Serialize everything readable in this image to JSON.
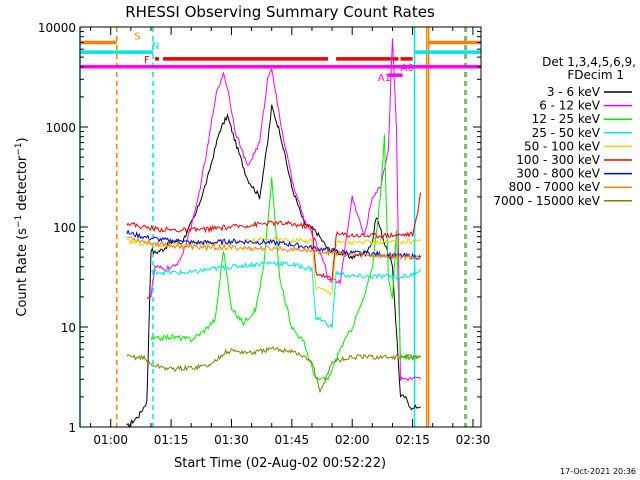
{
  "chart_data": {
    "type": "line",
    "title": "RHESSI Observing Summary Count Rates",
    "xlabel": "Start Time (02-Aug-02 00:52:22)",
    "ylabel": "Count Rate (s⁻¹ detector⁻¹)",
    "ylabel_parts": {
      "main": "Count Rate (s",
      "sup1": "−1",
      "mid": " detector",
      "sup2": "−1",
      "end": ")"
    },
    "y_scale": "log",
    "ylim": [
      1,
      10000
    ],
    "xlim": [
      "00:52:22",
      "02:32:00"
    ],
    "x_ticks": [
      "01:00",
      "01:15",
      "01:30",
      "01:45",
      "02:00",
      "02:15",
      "02:30"
    ],
    "y_ticks": [
      "1",
      "10",
      "100",
      "1000",
      "10000"
    ],
    "timestamp": "17-Oct-2021 20:36",
    "legend": {
      "placement": "right",
      "header": [
        "Det 1,3,4,5,6,9,",
        "FDecim 1"
      ],
      "entries": [
        {
          "label": "3 - 6 keV",
          "color": "#000000"
        },
        {
          "label": "6 - 12 keV",
          "color": "#ff00ff"
        },
        {
          "label": "12 - 25 keV",
          "color": "#00ee00"
        },
        {
          "label": "25 - 50 keV",
          "color": "#00e5e5"
        },
        {
          "label": "50 - 100 keV",
          "color": "#d8d800"
        },
        {
          "label": "100 - 300 keV",
          "color": "#ee0000"
        },
        {
          "label": "300 - 800 keV",
          "color": "#0000ee"
        },
        {
          "label": "800 - 7000 keV",
          "color": "#ff8000"
        },
        {
          "label": "7000 - 15000 keV",
          "color": "#808000"
        }
      ]
    },
    "flag_bars": [
      {
        "label": "S",
        "color": "#ff8000",
        "y": 7000,
        "segments": [
          [
            "00:52:22",
            "01:01:30"
          ],
          [
            "02:19:00",
            "02:32:00"
          ]
        ]
      },
      {
        "label": "N",
        "color": "#00e5e5",
        "y": 5600,
        "segments": [
          [
            "00:52:22",
            "01:10:30"
          ],
          [
            "02:15:30",
            "02:32:00"
          ]
        ]
      },
      {
        "label": "F",
        "color": "#ee0000",
        "y": 4800,
        "segments": [
          [
            "01:11:00",
            "01:12:00"
          ],
          [
            "01:13:00",
            "01:54:00"
          ],
          [
            "01:56:00",
            "02:11:30"
          ],
          [
            "02:12:00",
            "02:15:00"
          ]
        ]
      },
      {
        "label": "A0",
        "color": "#ff00ff",
        "y": 4000,
        "segments": [
          [
            "00:52:22",
            "02:32:00"
          ]
        ]
      },
      {
        "label": "A1",
        "color": "#ff00ff",
        "y": 3300,
        "segments": [
          [
            "02:09:00",
            "02:12:30"
          ]
        ]
      }
    ],
    "vertical_markers": [
      {
        "x": "00:52:22",
        "color": "#00e5e5",
        "style": "solid"
      },
      {
        "x": "01:01:30",
        "color": "#ff8000",
        "style": "dashed"
      },
      {
        "x": "01:10:30",
        "color": "#00e5e5",
        "style": "dashed"
      },
      {
        "x": "02:15:30",
        "color": "#00e5e5",
        "style": "solid"
      },
      {
        "x": "02:18:30",
        "color": "#ff8000",
        "style": "solid"
      },
      {
        "x": "02:19:00",
        "color": "#ff8000",
        "style": "solid"
      },
      {
        "x": "02:28:00",
        "color": "#ff8000",
        "style": "dashed"
      },
      {
        "x": "02:28:20",
        "color": "#00e5e5",
        "style": "dashed"
      }
    ],
    "series": [
      {
        "name": "3 - 6 keV",
        "color": "#000000",
        "x": [
          "01:04",
          "01:07",
          "01:09",
          "01:10",
          "01:11",
          "01:13",
          "01:15",
          "01:18",
          "01:21",
          "01:24",
          "01:27",
          "01:29",
          "01:31",
          "01:34",
          "01:37",
          "01:39",
          "01:40",
          "01:42",
          "01:45",
          "01:48",
          "01:51",
          "01:54",
          "01:57",
          "02:00",
          "02:03",
          "02:05",
          "02:06",
          "02:08",
          "02:10",
          "02:12",
          "02:13",
          "02:15",
          "02:16",
          "02:17"
        ],
        "values": [
          1,
          1.3,
          1.8,
          60,
          55,
          60,
          70,
          75,
          130,
          300,
          900,
          1300,
          700,
          300,
          200,
          700,
          1600,
          900,
          250,
          110,
          90,
          60,
          55,
          50,
          55,
          70,
          130,
          70,
          40,
          2,
          2,
          1.5,
          1.6,
          1.6
        ]
      },
      {
        "name": "6 - 12 keV",
        "color": "#ff00ff",
        "x": [
          "01:09",
          "01:10",
          "01:11",
          "01:13",
          "01:16",
          "01:18",
          "01:21",
          "01:24",
          "01:26",
          "01:28",
          "01:29",
          "01:31",
          "01:34",
          "01:37",
          "01:39",
          "01:40",
          "01:42",
          "01:45",
          "01:48",
          "01:51",
          "01:53",
          "01:54",
          "01:57",
          "02:00",
          "02:03",
          "02:05",
          "02:07",
          "02:09",
          "02:10",
          "02:11",
          "02:12",
          "02:13",
          "02:15",
          "02:17"
        ],
        "values": [
          20,
          20,
          40,
          38,
          40,
          55,
          140,
          600,
          2000,
          3500,
          2500,
          900,
          400,
          700,
          3000,
          4000,
          1200,
          300,
          120,
          70,
          45,
          30,
          28,
          200,
          80,
          200,
          250,
          600,
          8000,
          1000,
          3,
          3,
          3,
          3
        ]
      },
      {
        "name": "12 - 25 keV",
        "color": "#00ee00",
        "x": [
          "01:10",
          "01:15",
          "01:20",
          "01:23",
          "01:26",
          "01:28",
          "01:30",
          "01:33",
          "01:36",
          "01:38",
          "01:40",
          "01:42",
          "01:45",
          "01:48",
          "01:51",
          "01:54",
          "01:57",
          "02:00",
          "02:03",
          "02:05",
          "02:07",
          "02:08",
          "02:09",
          "02:10",
          "02:11",
          "02:12",
          "02:13",
          "02:15",
          "02:17"
        ],
        "values": [
          7.5,
          8,
          7.5,
          9,
          12,
          60,
          15,
          11,
          15,
          40,
          300,
          30,
          10,
          7,
          3,
          3,
          6,
          10,
          20,
          40,
          200,
          800,
          30,
          20,
          90,
          5,
          5,
          5,
          5
        ]
      },
      {
        "name": "25 - 50 keV",
        "color": "#00e5e5",
        "x": [
          "01:10",
          "01:15",
          "01:20",
          "01:25",
          "01:30",
          "01:35",
          "01:40",
          "01:45",
          "01:50",
          "01:51",
          "01:52",
          "01:55",
          "01:56",
          "02:00",
          "02:05",
          "02:10",
          "02:12",
          "02:13",
          "02:15",
          "02:17"
        ],
        "values": [
          36,
          35,
          35,
          38,
          40,
          42,
          44,
          42,
          38,
          12,
          12,
          10,
          35,
          32,
          32,
          32,
          32,
          32,
          33,
          38
        ]
      },
      {
        "name": "50 - 100 keV",
        "color": "#d8d800",
        "x": [
          "01:04",
          "01:10",
          "01:15",
          "01:20",
          "01:25",
          "01:30",
          "01:35",
          "01:40",
          "01:45",
          "01:50",
          "01:51",
          "01:55",
          "01:56",
          "02:00",
          "02:05",
          "02:10",
          "02:15",
          "02:17"
        ],
        "values": [
          72,
          67,
          66,
          67,
          68,
          70,
          73,
          75,
          74,
          72,
          25,
          22,
          70,
          70,
          70,
          70,
          72,
          75
        ]
      },
      {
        "name": "100 - 300 keV",
        "color": "#ee0000",
        "x": [
          "01:04",
          "01:08",
          "01:12",
          "01:16",
          "01:20",
          "01:25",
          "01:30",
          "01:35",
          "01:40",
          "01:45",
          "01:50",
          "01:51",
          "01:55",
          "01:56",
          "02:00",
          "02:05",
          "02:10",
          "02:15",
          "02:16",
          "02:17"
        ],
        "values": [
          110,
          100,
          95,
          93,
          93,
          96,
          100,
          105,
          110,
          107,
          100,
          35,
          30,
          85,
          83,
          82,
          83,
          85,
          120,
          220
        ]
      },
      {
        "name": "300 - 800 keV",
        "color": "#0000ee",
        "x": [
          "01:04",
          "01:08",
          "01:12",
          "01:16",
          "01:20",
          "01:25",
          "01:30",
          "01:35",
          "01:40",
          "01:45",
          "01:50",
          "01:55",
          "02:00",
          "02:05",
          "02:10",
          "02:15",
          "02:17"
        ],
        "values": [
          88,
          80,
          75,
          72,
          70,
          70,
          72,
          71,
          70,
          67,
          62,
          58,
          55,
          54,
          52,
          51,
          50
        ]
      },
      {
        "name": "800 - 7000 keV",
        "color": "#ff8000",
        "x": [
          "01:04",
          "01:08",
          "01:12",
          "01:16",
          "01:20",
          "01:25",
          "01:30",
          "01:35",
          "01:40",
          "01:45",
          "01:50",
          "01:55",
          "02:00",
          "02:05",
          "02:10",
          "02:15",
          "02:17"
        ],
        "values": [
          80,
          72,
          68,
          65,
          63,
          62,
          62,
          61,
          61,
          60,
          58,
          55,
          53,
          52,
          51,
          50,
          50
        ]
      },
      {
        "name": "7000 - 15000 keV",
        "color": "#808000",
        "x": [
          "01:04",
          "01:08",
          "01:10",
          "01:15",
          "01:20",
          "01:25",
          "01:28",
          "01:30",
          "01:35",
          "01:40",
          "01:45",
          "01:50",
          "01:52",
          "01:55",
          "02:00",
          "02:05",
          "02:10",
          "02:15",
          "02:17"
        ],
        "values": [
          5,
          5,
          4.2,
          3.8,
          3.9,
          4.2,
          5.5,
          5.8,
          5.5,
          6,
          5.8,
          4.5,
          2.2,
          4.5,
          5,
          5,
          5,
          5,
          5
        ]
      }
    ]
  }
}
